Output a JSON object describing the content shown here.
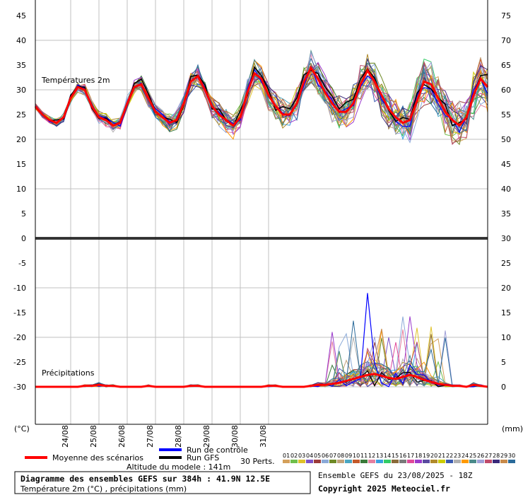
{
  "chart_data": {
    "type": "line",
    "panel_labels": {
      "temp": "Températures 2m",
      "precip": "Précipitations"
    },
    "left_axis": {
      "unit": "(°C)",
      "ticks": [
        45,
        40,
        35,
        30,
        25,
        20,
        15,
        10,
        5,
        0,
        -5,
        -10,
        -15,
        -20,
        -25,
        -30
      ]
    },
    "right_axis": {
      "unit": "(mm)",
      "ticks": [
        75,
        70,
        65,
        60,
        55,
        50,
        45,
        40,
        35,
        30,
        25,
        20,
        15,
        10,
        5,
        0
      ]
    },
    "x_ticks": [
      "24/08",
      "25/08",
      "26/08",
      "27/08",
      "28/08",
      "29/08",
      "30/08",
      "31/08"
    ],
    "temp_ylim": [
      0,
      45
    ],
    "precip_ylim": [
      0,
      30
    ],
    "n_steps": 65,
    "hours_per_step": 6,
    "temp_mean": [
      24,
      22.5,
      21.5,
      21,
      22,
      25.5,
      27.5,
      27,
      24,
      22,
      21.5,
      20.5,
      21,
      24.5,
      27.5,
      28,
      25.5,
      23,
      22,
      21,
      21.5,
      24.5,
      28.5,
      29.5,
      27,
      24,
      22.5,
      21.5,
      20.5,
      22,
      26.5,
      30,
      29,
      26,
      24,
      22.5,
      22.5,
      24.5,
      28.5,
      31,
      29,
      26.5,
      24.5,
      23,
      23,
      24.5,
      28,
      30.5,
      28.5,
      26,
      23.5,
      22,
      21,
      21.5,
      25,
      28.5,
      28,
      25.5,
      23,
      21.5,
      20.5,
      22,
      26,
      29,
      27.5
    ],
    "precip_mean": [
      0,
      0,
      0,
      0,
      0,
      0,
      0,
      0.1,
      0.1,
      0.2,
      0.1,
      0.1,
      0,
      0,
      0,
      0,
      0.1,
      0,
      0,
      0,
      0,
      0,
      0.1,
      0.1,
      0,
      0,
      0,
      0,
      0,
      0,
      0,
      0,
      0,
      0.1,
      0.1,
      0,
      0,
      0,
      0,
      0.1,
      0.2,
      0.2,
      0.3,
      0.4,
      0.6,
      0.8,
      1,
      1.2,
      1.3,
      1.1,
      0.9,
      0.8,
      1,
      1.2,
      1,
      0.7,
      0.5,
      0.3,
      0.2,
      0.1,
      0.1,
      0,
      0.2,
      0.1,
      0
    ],
    "legend": {
      "mean": "Moyenne des scénarios",
      "control": "Run de contrôle",
      "gfs": "Run GFS",
      "perts": "30 Perts.",
      "pert_numbers": [
        "01",
        "02",
        "03",
        "04",
        "05",
        "06",
        "07",
        "08",
        "09",
        "10",
        "11",
        "12",
        "13",
        "14",
        "15",
        "16",
        "17",
        "18",
        "19",
        "20",
        "21",
        "22",
        "23",
        "24",
        "25",
        "26",
        "27",
        "28",
        "29",
        "30"
      ]
    },
    "colors": {
      "mean": "#ff0000",
      "control": "#0000ff",
      "gfs": "#000000",
      "perts": [
        "#d4a05a",
        "#6fbf4b",
        "#e0c22a",
        "#7b52c9",
        "#9b3b3b",
        "#8aa9d8",
        "#6e8a26",
        "#c2a27a",
        "#4aa6c2",
        "#c45a2a",
        "#3a7a3a",
        "#e57fa0",
        "#3aa0e0",
        "#33cc66",
        "#8b6b3a",
        "#7a7a7a",
        "#e04a9a",
        "#9a3acc",
        "#5a4aa0",
        "#b08a2a",
        "#cccc00",
        "#3a5ab0",
        "#b0b0b0",
        "#ff9a00",
        "#4a8a8a",
        "#a0a0d8",
        "#c04a6a",
        "#3a2a7a",
        "#c88a4a",
        "#2a6a9a"
      ]
    },
    "caption": {
      "altitude": "Altitude du modele : 141m",
      "title": "Diagramme des ensembles GEFS sur 384h : 41.9N 12.5E",
      "subtitle": "Température 2m (°C) , précipitations (mm)",
      "run_info": "Ensemble GEFS du 23/08/2025 - 18Z",
      "copyright": "Copyright 2025 Meteociel.fr"
    }
  }
}
